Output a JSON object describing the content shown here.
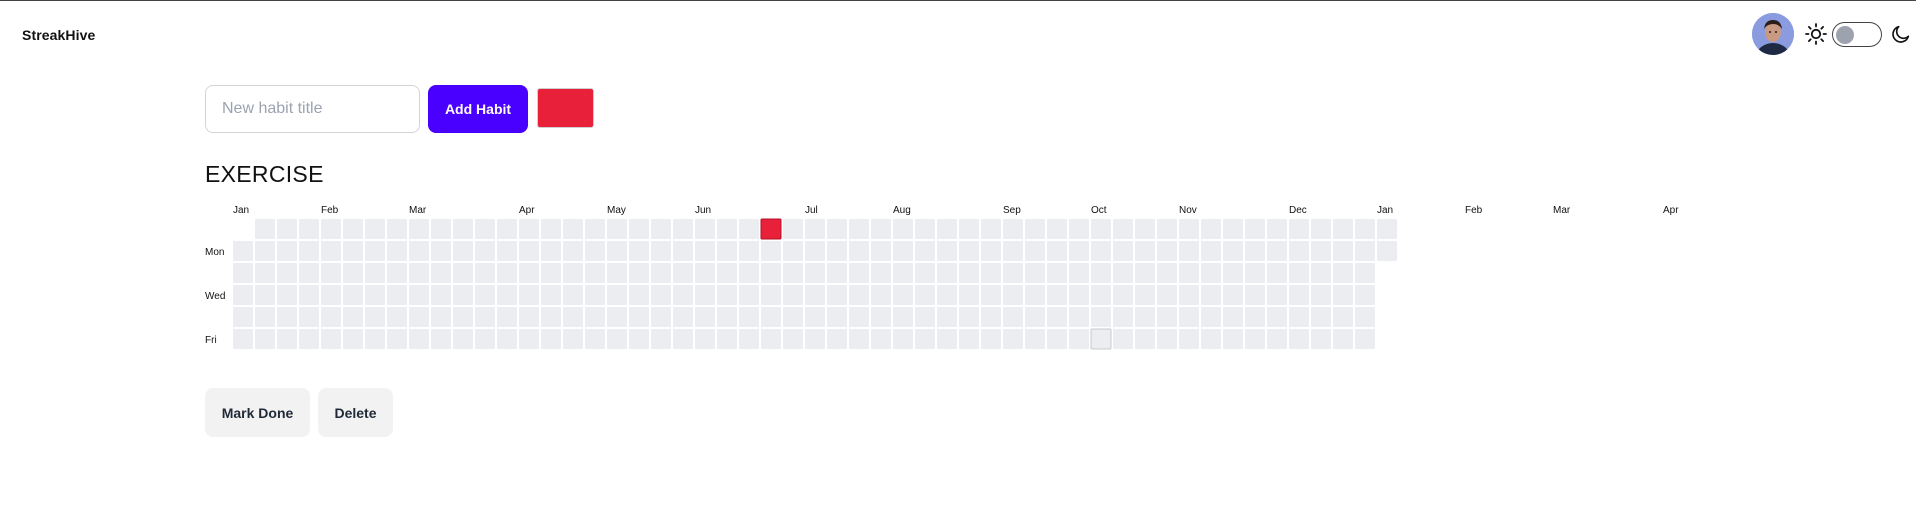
{
  "app": {
    "brand": "StreakHive"
  },
  "header": {
    "avatar_icon": "user-avatar",
    "theme_light_icon": "sun-icon",
    "theme_dark_icon": "moon-icon",
    "theme_toggle_on": false
  },
  "form": {
    "title_placeholder": "New habit title",
    "title_value": "",
    "add_label": "Add Habit",
    "selected_color": "#e8203a"
  },
  "habit": {
    "title": "EXERCISE",
    "color": "#e8203a",
    "empty_color": "#ebedf0",
    "weeks": 53,
    "start_day_offset": 1,
    "total_days": 365,
    "done_days": [
      {
        "week": 24,
        "day": 0
      }
    ],
    "highlighted_days": [
      {
        "week": 39,
        "day": 5
      }
    ],
    "month_labels": [
      {
        "label": "Jan",
        "week": 0
      },
      {
        "label": "Feb",
        "week": 4
      },
      {
        "label": "Mar",
        "week": 8
      },
      {
        "label": "Apr",
        "week": 13
      },
      {
        "label": "May",
        "week": 17
      },
      {
        "label": "Jun",
        "week": 21
      },
      {
        "label": "Jul",
        "week": 26
      },
      {
        "label": "Aug",
        "week": 30
      },
      {
        "label": "Sep",
        "week": 35
      },
      {
        "label": "Oct",
        "week": 39
      },
      {
        "label": "Nov",
        "week": 43
      },
      {
        "label": "Dec",
        "week": 48
      },
      {
        "label": "Jan",
        "week": 52
      },
      {
        "label": "Feb",
        "week": 56
      },
      {
        "label": "Mar",
        "week": 60
      },
      {
        "label": "Apr",
        "week": 65
      }
    ],
    "day_labels": [
      {
        "label": "Mon",
        "day": 1
      },
      {
        "label": "Wed",
        "day": 3
      },
      {
        "label": "Fri",
        "day": 5
      }
    ]
  },
  "actions": {
    "mark_done_label": "Mark Done",
    "delete_label": "Delete"
  }
}
